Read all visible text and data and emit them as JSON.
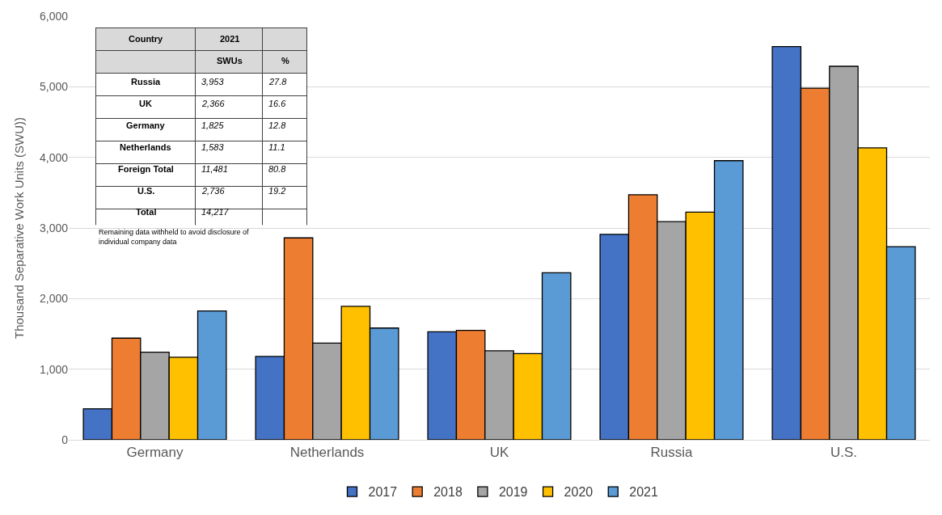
{
  "chart_data": [
    {
      "type": "bar",
      "ylabel": "Thousand Separative Work Units (SWU))",
      "categories": [
        "Germany",
        "Netherlands",
        "UK",
        "Russia",
        "U.S."
      ],
      "series": [
        {
          "name": "2017",
          "color": "#4472c4",
          "values": [
            440,
            1180,
            1530,
            2910,
            5570
          ]
        },
        {
          "name": "2018",
          "color": "#ed7d31",
          "values": [
            1440,
            2860,
            1550,
            3470,
            4980
          ]
        },
        {
          "name": "2019",
          "color": "#a5a5a5",
          "values": [
            1240,
            1370,
            1260,
            3090,
            5290
          ]
        },
        {
          "name": "2020",
          "color": "#ffc000",
          "values": [
            1170,
            1890,
            1220,
            3225,
            4135
          ]
        },
        {
          "name": "2021",
          "color": "#5b9bd5",
          "values": [
            1825,
            1583,
            2366,
            3953,
            2736
          ]
        }
      ],
      "ylim": [
        0,
        6000
      ],
      "yticks": [
        {
          "value": 0,
          "label": "0"
        },
        {
          "value": 1000,
          "label": "1,000"
        },
        {
          "value": 2000,
          "label": "2,000"
        },
        {
          "value": 3000,
          "label": "3,000"
        },
        {
          "value": 4000,
          "label": "4,000"
        },
        {
          "value": 5000,
          "label": "5,000"
        },
        {
          "value": 6000,
          "label": "6,000"
        }
      ],
      "grid": "y",
      "legend": "bottom"
    },
    {
      "type": "other",
      "title": "2021",
      "ylabel": "Country",
      "categories": [
        "SWUs",
        "%"
      ],
      "y_categories": [
        "Russia",
        "UK",
        "Germany",
        "Netherlands",
        "Foreign Total",
        "U.S.",
        "Total"
      ],
      "cell_labels": [
        [
          "3,953",
          "27.8"
        ],
        [
          "2,366",
          "16.6"
        ],
        [
          "1,825",
          "12.8"
        ],
        [
          "1,583",
          "11.1"
        ],
        [
          "11,481",
          "80.8"
        ],
        [
          "2,736",
          "19.2"
        ],
        [
          "14,217",
          null
        ]
      ],
      "annotations": [
        "Remaining data withheld to avoid disclosure of individual company data"
      ]
    }
  ]
}
